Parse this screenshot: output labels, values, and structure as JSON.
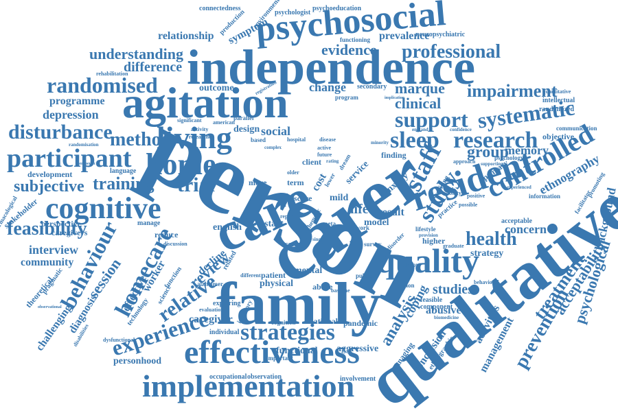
{
  "word_color": "#3a78b0",
  "background": "#ffffff",
  "words": [
    {
      "text": "person",
      "emphasis": "largest"
    },
    {
      "text": "qualitative",
      "emphasis": "largest"
    },
    {
      "text": "carer",
      "emphasis": "largest"
    },
    {
      "text": "family",
      "emphasis": "very-large"
    },
    {
      "text": "care",
      "emphasis": "very-large"
    },
    {
      "text": "independence",
      "emphasis": "very-large"
    },
    {
      "text": "agitation",
      "emphasis": "very-large"
    },
    {
      "text": "psychosocial",
      "emphasis": "large"
    },
    {
      "text": "resident",
      "emphasis": "large"
    },
    {
      "text": "quality",
      "emphasis": "large"
    },
    {
      "text": "effectiveness",
      "emphasis": "large"
    },
    {
      "text": "implementation",
      "emphasis": "large"
    },
    {
      "text": "strategies",
      "emphasis": "large"
    },
    {
      "text": "living",
      "emphasis": "large"
    },
    {
      "text": "home",
      "emphasis": "large"
    },
    {
      "text": "cognitive",
      "emphasis": "large"
    },
    {
      "text": "participant",
      "emphasis": "medium"
    },
    {
      "text": "controlled",
      "emphasis": "medium"
    },
    {
      "text": "experience",
      "emphasis": "medium"
    },
    {
      "text": "homecare",
      "emphasis": "medium"
    },
    {
      "text": "behaviour",
      "emphasis": "medium"
    },
    {
      "text": "relative",
      "emphasis": "medium"
    },
    {
      "text": "staff",
      "emphasis": "medium"
    },
    {
      "text": "study",
      "emphasis": "medium"
    },
    {
      "text": "sleep",
      "emphasis": "medium"
    },
    {
      "text": "research",
      "emphasis": "medium"
    },
    {
      "text": "randomised",
      "emphasis": "medium"
    },
    {
      "text": "disturbance",
      "emphasis": "medium"
    },
    {
      "text": "method",
      "emphasis": "medium"
    },
    {
      "text": "support",
      "emphasis": "medium"
    },
    {
      "text": "systematic",
      "emphasis": "medium"
    },
    {
      "text": "clinical",
      "emphasis": "medium"
    },
    {
      "text": "marque",
      "emphasis": "medium"
    },
    {
      "text": "impairment",
      "emphasis": "medium"
    },
    {
      "text": "professional",
      "emphasis": "medium"
    },
    {
      "text": "evidence",
      "emphasis": "medium"
    },
    {
      "text": "prevalence",
      "emphasis": "small"
    },
    {
      "text": "understanding",
      "emphasis": "medium"
    },
    {
      "text": "difference",
      "emphasis": "medium"
    },
    {
      "text": "relationship",
      "emphasis": "small"
    },
    {
      "text": "symptom",
      "emphasis": "small"
    },
    {
      "text": "feasibility",
      "emphasis": "medium"
    },
    {
      "text": "training",
      "emphasis": "medium"
    },
    {
      "text": "subjective",
      "emphasis": "medium"
    },
    {
      "text": "trial",
      "emphasis": "medium"
    },
    {
      "text": "review",
      "emphasis": "medium"
    },
    {
      "text": "group",
      "emphasis": "medium"
    },
    {
      "text": "memory",
      "emphasis": "small"
    },
    {
      "text": "health",
      "emphasis": "medium"
    },
    {
      "text": "concern",
      "emphasis": "small"
    },
    {
      "text": "analysis",
      "emphasis": "medium"
    },
    {
      "text": "prevention",
      "emphasis": "medium"
    },
    {
      "text": "treatment",
      "emphasis": "medium"
    },
    {
      "text": "acceptability",
      "emphasis": "medium"
    },
    {
      "text": "psychological",
      "emphasis": "medium"
    },
    {
      "text": "background",
      "emphasis": "small"
    },
    {
      "text": "ethnography",
      "emphasis": "small"
    },
    {
      "text": "management",
      "emphasis": "small"
    },
    {
      "text": "conclusion",
      "emphasis": "small"
    },
    {
      "text": "activities",
      "emphasis": "small"
    },
    {
      "text": "coping",
      "emphasis": "small"
    },
    {
      "text": "abusive",
      "emphasis": "small"
    },
    {
      "text": "studies",
      "emphasis": "small"
    },
    {
      "text": "strategy",
      "emphasis": "small"
    },
    {
      "text": "session",
      "emphasis": "medium"
    },
    {
      "text": "challenging",
      "emphasis": "small"
    },
    {
      "text": "diagnosis",
      "emphasis": "small"
    },
    {
      "text": "effective",
      "emphasis": "small"
    },
    {
      "text": "worker",
      "emphasis": "small"
    },
    {
      "text": "decline",
      "emphasis": "small"
    },
    {
      "text": "caregiver",
      "emphasis": "small"
    },
    {
      "text": "functional",
      "emphasis": "small"
    },
    {
      "text": "aggressive",
      "emphasis": "small"
    },
    {
      "text": "personhood",
      "emphasis": "small"
    },
    {
      "text": "interview",
      "emphasis": "small"
    },
    {
      "text": "community",
      "emphasis": "small"
    },
    {
      "text": "perspective",
      "emphasis": "small"
    },
    {
      "text": "stakeholder",
      "emphasis": "small"
    },
    {
      "text": "development",
      "emphasis": "small"
    },
    {
      "text": "caregivers",
      "emphasis": "small"
    },
    {
      "text": "programme",
      "emphasis": "small"
    },
    {
      "text": "depression",
      "emphasis": "small"
    },
    {
      "text": "outcome",
      "emphasis": "small"
    },
    {
      "text": "change",
      "emphasis": "small"
    },
    {
      "text": "social",
      "emphasis": "small"
    },
    {
      "text": "design",
      "emphasis": "small"
    },
    {
      "text": "result",
      "emphasis": "small"
    },
    {
      "text": "life",
      "emphasis": "small"
    },
    {
      "text": "start",
      "emphasis": "small"
    },
    {
      "text": "mental",
      "emphasis": "small"
    },
    {
      "text": "physical",
      "emphasis": "small"
    },
    {
      "text": "patient",
      "emphasis": "small"
    },
    {
      "text": "english",
      "emphasis": "small"
    },
    {
      "text": "service",
      "emphasis": "small"
    },
    {
      "text": "anxiety",
      "emphasis": "small"
    },
    {
      "text": "model",
      "emphasis": "small"
    },
    {
      "text": "month",
      "emphasis": "small"
    },
    {
      "text": "cost",
      "emphasis": "small"
    },
    {
      "text": "mild",
      "emphasis": "small"
    },
    {
      "text": "client",
      "emphasis": "small"
    },
    {
      "text": "finding",
      "emphasis": "small"
    },
    {
      "text": "acceptable",
      "emphasis": "small"
    },
    {
      "text": "primary",
      "emphasis": "small"
    },
    {
      "text": "objective",
      "emphasis": "small"
    },
    {
      "text": "randomized",
      "emphasis": "small"
    },
    {
      "text": "observation",
      "emphasis": "small"
    },
    {
      "text": "occupational",
      "emphasis": "small"
    },
    {
      "text": "involvement",
      "emphasis": "small"
    },
    {
      "text": "pandemic",
      "emphasis": "small"
    },
    {
      "text": "national",
      "emphasis": "small"
    },
    {
      "text": "abuse",
      "emphasis": "small"
    },
    {
      "text": "feasible",
      "emphasis": "small"
    },
    {
      "text": "component",
      "emphasis": "small"
    },
    {
      "text": "managing",
      "emphasis": "small"
    },
    {
      "text": "ethnographic",
      "emphasis": "small"
    },
    {
      "text": "higher",
      "emphasis": "small"
    },
    {
      "text": "reduce",
      "emphasis": "small"
    },
    {
      "text": "manage",
      "emphasis": "small"
    },
    {
      "text": "language",
      "emphasis": "small"
    },
    {
      "text": "theoretical",
      "emphasis": "small"
    },
    {
      "text": "pragmatic",
      "emphasis": "small"
    },
    {
      "text": "technology",
      "emphasis": "small"
    },
    {
      "text": "science",
      "emphasis": "small"
    },
    {
      "text": "function",
      "emphasis": "small"
    },
    {
      "text": "related",
      "emphasis": "small"
    },
    {
      "text": "exploring",
      "emphasis": "small"
    },
    {
      "text": "alzheimer",
      "emphasis": "small"
    },
    {
      "text": "individual",
      "emphasis": "small"
    },
    {
      "text": "important",
      "emphasis": "small"
    },
    {
      "text": "cognition",
      "emphasis": "small"
    },
    {
      "text": "connectedness",
      "emphasis": "small"
    },
    {
      "text": "psychologist",
      "emphasis": "small"
    },
    {
      "text": "psychoeducation",
      "emphasis": "small"
    },
    {
      "text": "environmental",
      "emphasis": "small"
    },
    {
      "text": "production",
      "emphasis": "small"
    },
    {
      "text": "neuropsychiatric",
      "emphasis": "small"
    },
    {
      "text": "functioning",
      "emphasis": "small"
    },
    {
      "text": "rehabilitation",
      "emphasis": "small"
    },
    {
      "text": "secondary",
      "emphasis": "small"
    },
    {
      "text": "program",
      "emphasis": "small"
    },
    {
      "text": "intellectual",
      "emphasis": "small"
    },
    {
      "text": "quantitative",
      "emphasis": "small"
    },
    {
      "text": "communication",
      "emphasis": "small"
    },
    {
      "text": "promoting",
      "emphasis": "small"
    },
    {
      "text": "facilitator",
      "emphasis": "small"
    },
    {
      "text": "information",
      "emphasis": "small"
    },
    {
      "text": "psychology",
      "emphasis": "small"
    },
    {
      "text": "positive",
      "emphasis": "small"
    },
    {
      "text": "graduate",
      "emphasis": "small"
    },
    {
      "text": "different",
      "emphasis": "small"
    },
    {
      "text": "public",
      "emphasis": "small"
    },
    {
      "text": "criterion",
      "emphasis": "small"
    },
    {
      "text": "survey",
      "emphasis": "small"
    },
    {
      "text": "disorder",
      "emphasis": "small"
    },
    {
      "text": "year",
      "emphasis": "small"
    },
    {
      "text": "work",
      "emphasis": "small"
    },
    {
      "text": "effect",
      "emphasis": "small"
    },
    {
      "text": "score",
      "emphasis": "small"
    },
    {
      "text": "usual",
      "emphasis": "small"
    },
    {
      "text": "more",
      "emphasis": "small"
    },
    {
      "text": "term",
      "emphasis": "small"
    },
    {
      "text": "older",
      "emphasis": "small"
    },
    {
      "text": "lower",
      "emphasis": "small"
    },
    {
      "text": "dream",
      "emphasis": "small"
    },
    {
      "text": "active",
      "emphasis": "small"
    },
    {
      "text": "future",
      "emphasis": "small"
    },
    {
      "text": "based",
      "emphasis": "small"
    },
    {
      "text": "parallel",
      "emphasis": "small"
    },
    {
      "text": "american",
      "emphasis": "small"
    },
    {
      "text": "researcher",
      "emphasis": "small"
    },
    {
      "text": "activity",
      "emphasis": "small"
    },
    {
      "text": "significant",
      "emphasis": "small"
    },
    {
      "text": "randomisation",
      "emphasis": "small"
    },
    {
      "text": "therapeutic",
      "emphasis": "small"
    },
    {
      "text": "pharmacological",
      "emphasis": "small"
    },
    {
      "text": "dysfunctional",
      "emphasis": "small"
    },
    {
      "text": "disabilities",
      "emphasis": "small"
    },
    {
      "text": "observational",
      "emphasis": "small"
    },
    {
      "text": "caring",
      "emphasis": "small"
    },
    {
      "text": "report",
      "emphasis": "small"
    },
    {
      "text": "thematic",
      "emphasis": "small"
    },
    {
      "text": "lifestyle",
      "emphasis": "small"
    },
    {
      "text": "practice",
      "emphasis": "small"
    },
    {
      "text": "raising",
      "emphasis": "small"
    },
    {
      "text": "ability",
      "emphasis": "small"
    },
    {
      "text": "possible",
      "emphasis": "small"
    },
    {
      "text": "behavioral",
      "emphasis": "small"
    },
    {
      "text": "therapy",
      "emphasis": "small"
    },
    {
      "text": "baseline",
      "emphasis": "small"
    },
    {
      "text": "inventory",
      "emphasis": "small"
    },
    {
      "text": "discussion",
      "emphasis": "small"
    },
    {
      "text": "evaluation",
      "emphasis": "small"
    },
    {
      "text": "england",
      "emphasis": "small"
    },
    {
      "text": "experienced",
      "emphasis": "small"
    },
    {
      "text": "approach",
      "emphasis": "small"
    },
    {
      "text": "supporting",
      "emphasis": "small"
    },
    {
      "text": "registration",
      "emphasis": "small"
    },
    {
      "text": "confidence",
      "emphasis": "small"
    },
    {
      "text": "minority",
      "emphasis": "small"
    },
    {
      "text": "hospital",
      "emphasis": "small"
    },
    {
      "text": "implication",
      "emphasis": "small"
    },
    {
      "text": "complex",
      "emphasis": "small"
    },
    {
      "text": "provision",
      "emphasis": "small"
    },
    {
      "text": "biomedicine",
      "emphasis": "small"
    },
    {
      "text": "disease",
      "emphasis": "small"
    },
    {
      "text": "meta",
      "emphasis": "small"
    },
    {
      "text": "single",
      "emphasis": "small"
    },
    {
      "text": "rating",
      "emphasis": "small"
    }
  ]
}
